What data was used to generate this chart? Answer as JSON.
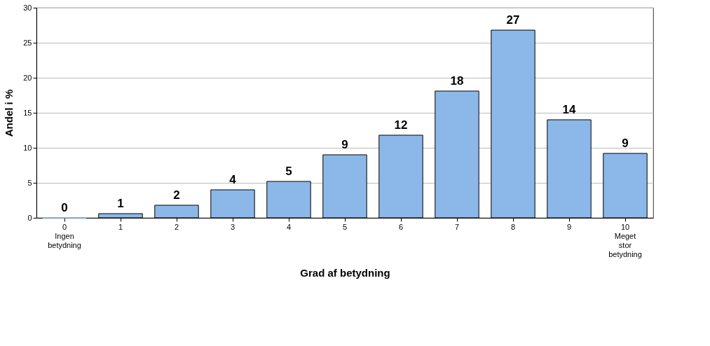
{
  "chart_data": {
    "type": "bar",
    "xlabel": "Grad af betydning",
    "ylabel": "Andel i %",
    "categories": [
      "0\nIngen\nbetydning",
      "1",
      "2",
      "3",
      "4",
      "5",
      "6",
      "7",
      "8",
      "9",
      "10\nMeget\nstor\nbetydning"
    ],
    "values": [
      0,
      0.6,
      1.8,
      4,
      5.2,
      9,
      11.8,
      18.1,
      26.8,
      14,
      9.2
    ],
    "value_labels": [
      "0",
      "1",
      "2",
      "4",
      "5",
      "9",
      "12",
      "18",
      "27",
      "14",
      "9"
    ],
    "color": "#8bb8e8",
    "ylim": [
      0,
      30
    ],
    "yticks": [
      0,
      5,
      10,
      15,
      20,
      25,
      30
    ],
    "grid": "y"
  }
}
